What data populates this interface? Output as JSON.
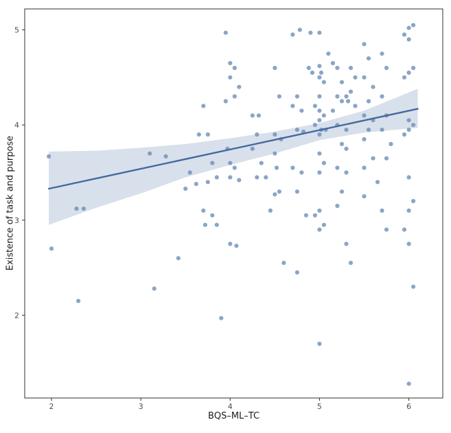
{
  "chart_data": {
    "type": "scatter",
    "title": "",
    "xlabel": "BQS–ML–TC",
    "ylabel": "Existence of task and purpose",
    "xlim": [
      1.7,
      6.38
    ],
    "ylim": [
      1.13,
      5.22
    ],
    "x_ticks": [
      2,
      3,
      4,
      5,
      6
    ],
    "y_ticks": [
      2,
      3,
      4,
      5
    ],
    "grid": false,
    "legend": "none",
    "points": [
      [
        1.97,
        3.67
      ],
      [
        2.0,
        2.7
      ],
      [
        2.28,
        3.12
      ],
      [
        2.36,
        3.12
      ],
      [
        2.3,
        2.15
      ],
      [
        3.1,
        3.7
      ],
      [
        3.28,
        3.67
      ],
      [
        3.15,
        2.28
      ],
      [
        3.42,
        2.6
      ],
      [
        3.55,
        3.5
      ],
      [
        3.5,
        3.33
      ],
      [
        3.62,
        3.38
      ],
      [
        3.7,
        4.2
      ],
      [
        3.75,
        3.9
      ],
      [
        3.65,
        3.9
      ],
      [
        3.8,
        3.6
      ],
      [
        3.75,
        3.4
      ],
      [
        3.7,
        3.1
      ],
      [
        3.8,
        3.05
      ],
      [
        3.72,
        2.95
      ],
      [
        3.85,
        2.95
      ],
      [
        3.9,
        1.97
      ],
      [
        3.85,
        3.45
      ],
      [
        3.95,
        4.97
      ],
      [
        4.0,
        4.65
      ],
      [
        4.05,
        4.6
      ],
      [
        4.0,
        4.5
      ],
      [
        4.05,
        4.3
      ],
      [
        3.95,
        4.25
      ],
      [
        4.1,
        4.4
      ],
      [
        3.97,
        3.75
      ],
      [
        4.0,
        3.6
      ],
      [
        4.05,
        3.55
      ],
      [
        4.0,
        3.45
      ],
      [
        4.1,
        3.42
      ],
      [
        4.0,
        2.75
      ],
      [
        4.07,
        2.73
      ],
      [
        4.25,
        4.1
      ],
      [
        4.32,
        4.1
      ],
      [
        4.3,
        3.9
      ],
      [
        4.35,
        3.6
      ],
      [
        4.3,
        3.45
      ],
      [
        4.4,
        3.45
      ],
      [
        4.25,
        3.75
      ],
      [
        4.45,
        3.1
      ],
      [
        4.5,
        4.6
      ],
      [
        4.55,
        4.3
      ],
      [
        4.5,
        3.9
      ],
      [
        4.57,
        3.85
      ],
      [
        4.5,
        3.7
      ],
      [
        4.52,
        3.55
      ],
      [
        4.55,
        3.3
      ],
      [
        4.5,
        3.27
      ],
      [
        4.6,
        2.55
      ],
      [
        4.7,
        4.95
      ],
      [
        4.78,
        5.0
      ],
      [
        4.75,
        4.3
      ],
      [
        4.7,
        4.2
      ],
      [
        4.8,
        4.15
      ],
      [
        4.75,
        3.95
      ],
      [
        4.82,
        3.93
      ],
      [
        4.7,
        3.55
      ],
      [
        4.8,
        3.5
      ],
      [
        4.75,
        3.3
      ],
      [
        4.85,
        3.05
      ],
      [
        4.75,
        2.45
      ],
      [
        4.9,
        4.97
      ],
      [
        4.88,
        4.6
      ],
      [
        4.92,
        4.55
      ],
      [
        4.95,
        4.2
      ],
      [
        4.95,
        4.0
      ],
      [
        4.95,
        3.05
      ],
      [
        5.0,
        4.97
      ],
      [
        5.0,
        4.62
      ],
      [
        5.02,
        4.55
      ],
      [
        5.0,
        4.5
      ],
      [
        5.05,
        4.45
      ],
      [
        5.0,
        4.3
      ],
      [
        5.0,
        4.15
      ],
      [
        5.05,
        4.1
      ],
      [
        5.0,
        4.05
      ],
      [
        5.02,
        3.95
      ],
      [
        5.07,
        3.95
      ],
      [
        5.0,
        3.9
      ],
      [
        5.0,
        3.7
      ],
      [
        5.05,
        3.6
      ],
      [
        5.0,
        3.5
      ],
      [
        5.0,
        3.1
      ],
      [
        5.0,
        2.9
      ],
      [
        5.05,
        2.95
      ],
      [
        5.0,
        1.7
      ],
      [
        5.1,
        4.75
      ],
      [
        5.15,
        4.65
      ],
      [
        5.2,
        4.6
      ],
      [
        5.25,
        4.45
      ],
      [
        5.2,
        4.3
      ],
      [
        5.3,
        4.3
      ],
      [
        5.25,
        4.25
      ],
      [
        5.32,
        4.25
      ],
      [
        5.15,
        4.15
      ],
      [
        5.2,
        4.0
      ],
      [
        5.3,
        3.95
      ],
      [
        5.25,
        3.8
      ],
      [
        5.3,
        3.75
      ],
      [
        5.2,
        3.55
      ],
      [
        5.3,
        3.5
      ],
      [
        5.25,
        3.3
      ],
      [
        5.2,
        3.15
      ],
      [
        5.3,
        2.75
      ],
      [
        5.35,
        4.6
      ],
      [
        5.4,
        4.5
      ],
      [
        5.35,
        4.35
      ],
      [
        5.4,
        4.2
      ],
      [
        5.35,
        2.55
      ],
      [
        5.5,
        4.85
      ],
      [
        5.55,
        4.7
      ],
      [
        5.5,
        4.5
      ],
      [
        5.6,
        4.4
      ],
      [
        5.55,
        4.25
      ],
      [
        5.5,
        4.1
      ],
      [
        5.6,
        4.05
      ],
      [
        5.55,
        3.95
      ],
      [
        5.5,
        3.85
      ],
      [
        5.6,
        3.65
      ],
      [
        5.5,
        3.55
      ],
      [
        5.65,
        3.4
      ],
      [
        5.5,
        3.25
      ],
      [
        5.7,
        4.75
      ],
      [
        5.75,
        4.6
      ],
      [
        5.7,
        4.3
      ],
      [
        5.75,
        4.1
      ],
      [
        5.7,
        3.95
      ],
      [
        5.8,
        3.8
      ],
      [
        5.75,
        3.65
      ],
      [
        5.7,
        3.1
      ],
      [
        5.75,
        2.9
      ],
      [
        5.95,
        4.95
      ],
      [
        6.0,
        5.02
      ],
      [
        6.05,
        5.05
      ],
      [
        6.0,
        4.9
      ],
      [
        6.05,
        4.6
      ],
      [
        6.0,
        4.55
      ],
      [
        5.95,
        4.5
      ],
      [
        6.0,
        4.05
      ],
      [
        6.05,
        4.0
      ],
      [
        6.0,
        3.95
      ],
      [
        5.95,
        3.9
      ],
      [
        6.0,
        3.45
      ],
      [
        6.05,
        3.2
      ],
      [
        6.0,
        3.1
      ],
      [
        5.95,
        2.9
      ],
      [
        6.0,
        2.75
      ],
      [
        6.05,
        2.3
      ],
      [
        6.0,
        1.28
      ]
    ],
    "regression_line": {
      "x": [
        1.97,
        6.1
      ],
      "y": [
        3.33,
        4.17
      ]
    },
    "confidence_band": {
      "x": [
        1.97,
        2.5,
        3.0,
        3.5,
        4.0,
        4.5,
        5.0,
        5.5,
        6.1
      ],
      "upper": [
        3.72,
        3.73,
        3.76,
        3.8,
        3.86,
        3.93,
        4.02,
        4.15,
        4.38
      ],
      "lower": [
        2.95,
        3.13,
        3.28,
        3.45,
        3.58,
        3.7,
        3.84,
        3.92,
        3.97
      ]
    },
    "colors": {
      "point": "#6d8fb8",
      "line": "#44699e",
      "band": "#c3d0e0",
      "panel_border": "#2f2f2f",
      "tick_text": "#4d4d4d",
      "label_text": "#1a1a1a"
    }
  }
}
